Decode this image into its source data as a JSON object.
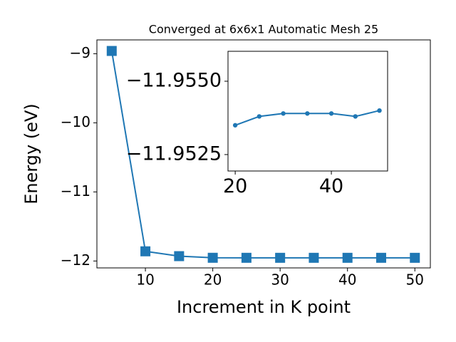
{
  "chart_data": [
    {
      "type": "line",
      "title": "Converged at 6x6x1 Automatic Mesh 25",
      "x_label": "Increment in K point",
      "y_label": "Energy (eV)",
      "x": [
        5,
        10,
        15,
        20,
        25,
        30,
        35,
        40,
        45,
        50
      ],
      "values": [
        -8.96,
        -11.86,
        -11.93,
        -11.9535,
        -11.9538,
        -11.9539,
        -11.9539,
        -11.9539,
        -11.9538,
        -11.954
      ],
      "color": "#1f77b4",
      "marker": "square",
      "xlim": [
        2.8,
        52.3
      ],
      "ylim": [
        -12.1,
        -8.8
      ],
      "xticks": [
        10,
        20,
        30,
        40,
        50
      ],
      "yticks": [
        {
          "value": -12,
          "label": "−12"
        },
        {
          "value": -11,
          "label": "−11"
        },
        {
          "value": -10,
          "label": "−10"
        },
        {
          "value": -9,
          "label": "−9"
        }
      ]
    },
    {
      "type": "line",
      "x": [
        20,
        25,
        30,
        35,
        40,
        45,
        50
      ],
      "values": [
        -11.9535,
        -11.9538,
        -11.9539,
        -11.9539,
        -11.9539,
        -11.9538,
        -11.954
      ],
      "color": "#1f77b4",
      "marker": "circle",
      "xlim": [
        18.5,
        51.7
      ],
      "ylim": [
        -11.95194,
        -11.95602
      ],
      "xticks": [
        20,
        40
      ],
      "yticks": [
        {
          "value": -11.9525,
          "label": "−11.9525"
        },
        {
          "value": -11.955,
          "label": "−11.9550"
        }
      ]
    }
  ]
}
